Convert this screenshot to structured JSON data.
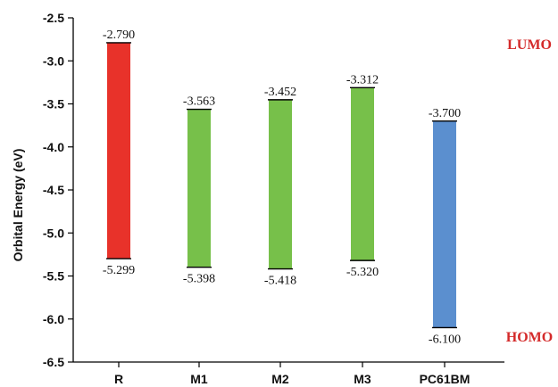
{
  "chart_data": {
    "type": "bar",
    "ylabel": "Orbital Energy (eV)",
    "xlabel": "",
    "ylim": [
      -6.5,
      -2.5
    ],
    "yticks": [
      -2.5,
      -3.0,
      -3.5,
      -4.0,
      -4.5,
      -5.0,
      -5.5,
      -6.0,
      -6.5
    ],
    "ytick_labels": [
      "-2.5",
      "-3.0",
      "-3.5",
      "-4.0",
      "-4.5",
      "-5.0",
      "-5.5",
      "-6.0",
      "-6.5"
    ],
    "grid": false,
    "categories": [
      "R",
      "M1",
      "M2",
      "M3",
      "PC61BM"
    ],
    "series": [
      {
        "name": "LUMO",
        "values": [
          -2.79,
          -3.563,
          -3.452,
          -3.312,
          -3.7
        ]
      },
      {
        "name": "HOMO",
        "values": [
          -5.299,
          -5.398,
          -5.418,
          -5.32,
          -6.1
        ]
      }
    ],
    "lumo_labels": [
      "-2.790",
      "-3.563",
      "-3.452",
      "-3.312",
      "-3.700"
    ],
    "homo_labels": [
      "-5.299",
      "-5.398",
      "-5.418",
      "-5.320",
      "-6.100"
    ],
    "bar_colors": [
      "#e8322a",
      "#77c04a",
      "#77c04a",
      "#77c04a",
      "#5b8fcf"
    ],
    "annotations": [
      {
        "text": "LUMO",
        "color": "#d42a2a",
        "anchor": "top-right"
      },
      {
        "text": "HOMO",
        "color": "#d42a2a",
        "anchor": "bottom-right"
      }
    ]
  }
}
